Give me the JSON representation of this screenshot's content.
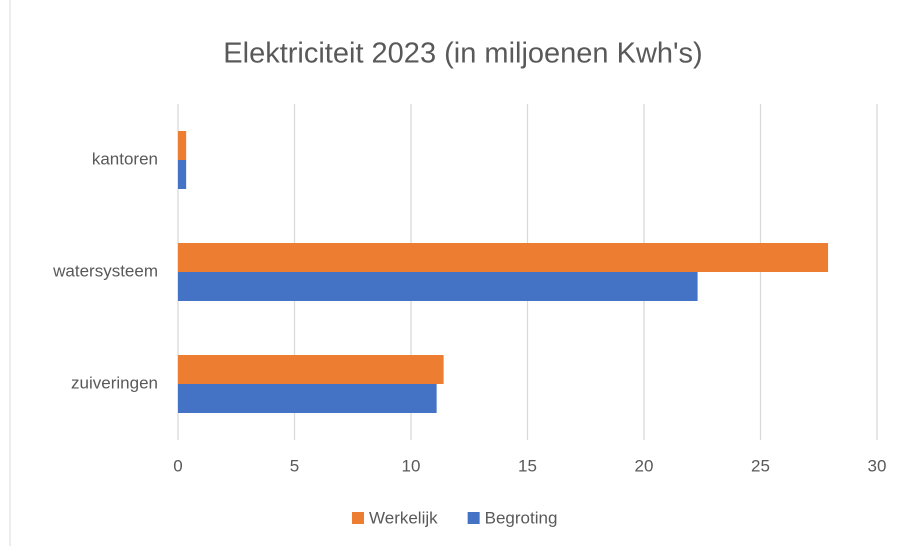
{
  "chart_data": {
    "type": "bar",
    "orientation": "horizontal",
    "title": "Elektriciteit 2023 (in miljoenen Kwh's)",
    "categories": [
      "kantoren",
      "watersysteem",
      "zuiveringen"
    ],
    "series": [
      {
        "name": "Werkelijk",
        "color": "#ed7d31",
        "values": [
          0.35,
          27.9,
          11.4
        ]
      },
      {
        "name": "Begroting",
        "color": "#4472c4",
        "values": [
          0.35,
          22.3,
          11.1
        ]
      }
    ],
    "xlim": [
      0,
      30
    ],
    "xticks": [
      0,
      5,
      10,
      15,
      20,
      25,
      30
    ],
    "grid": true,
    "legend": "bottom"
  }
}
